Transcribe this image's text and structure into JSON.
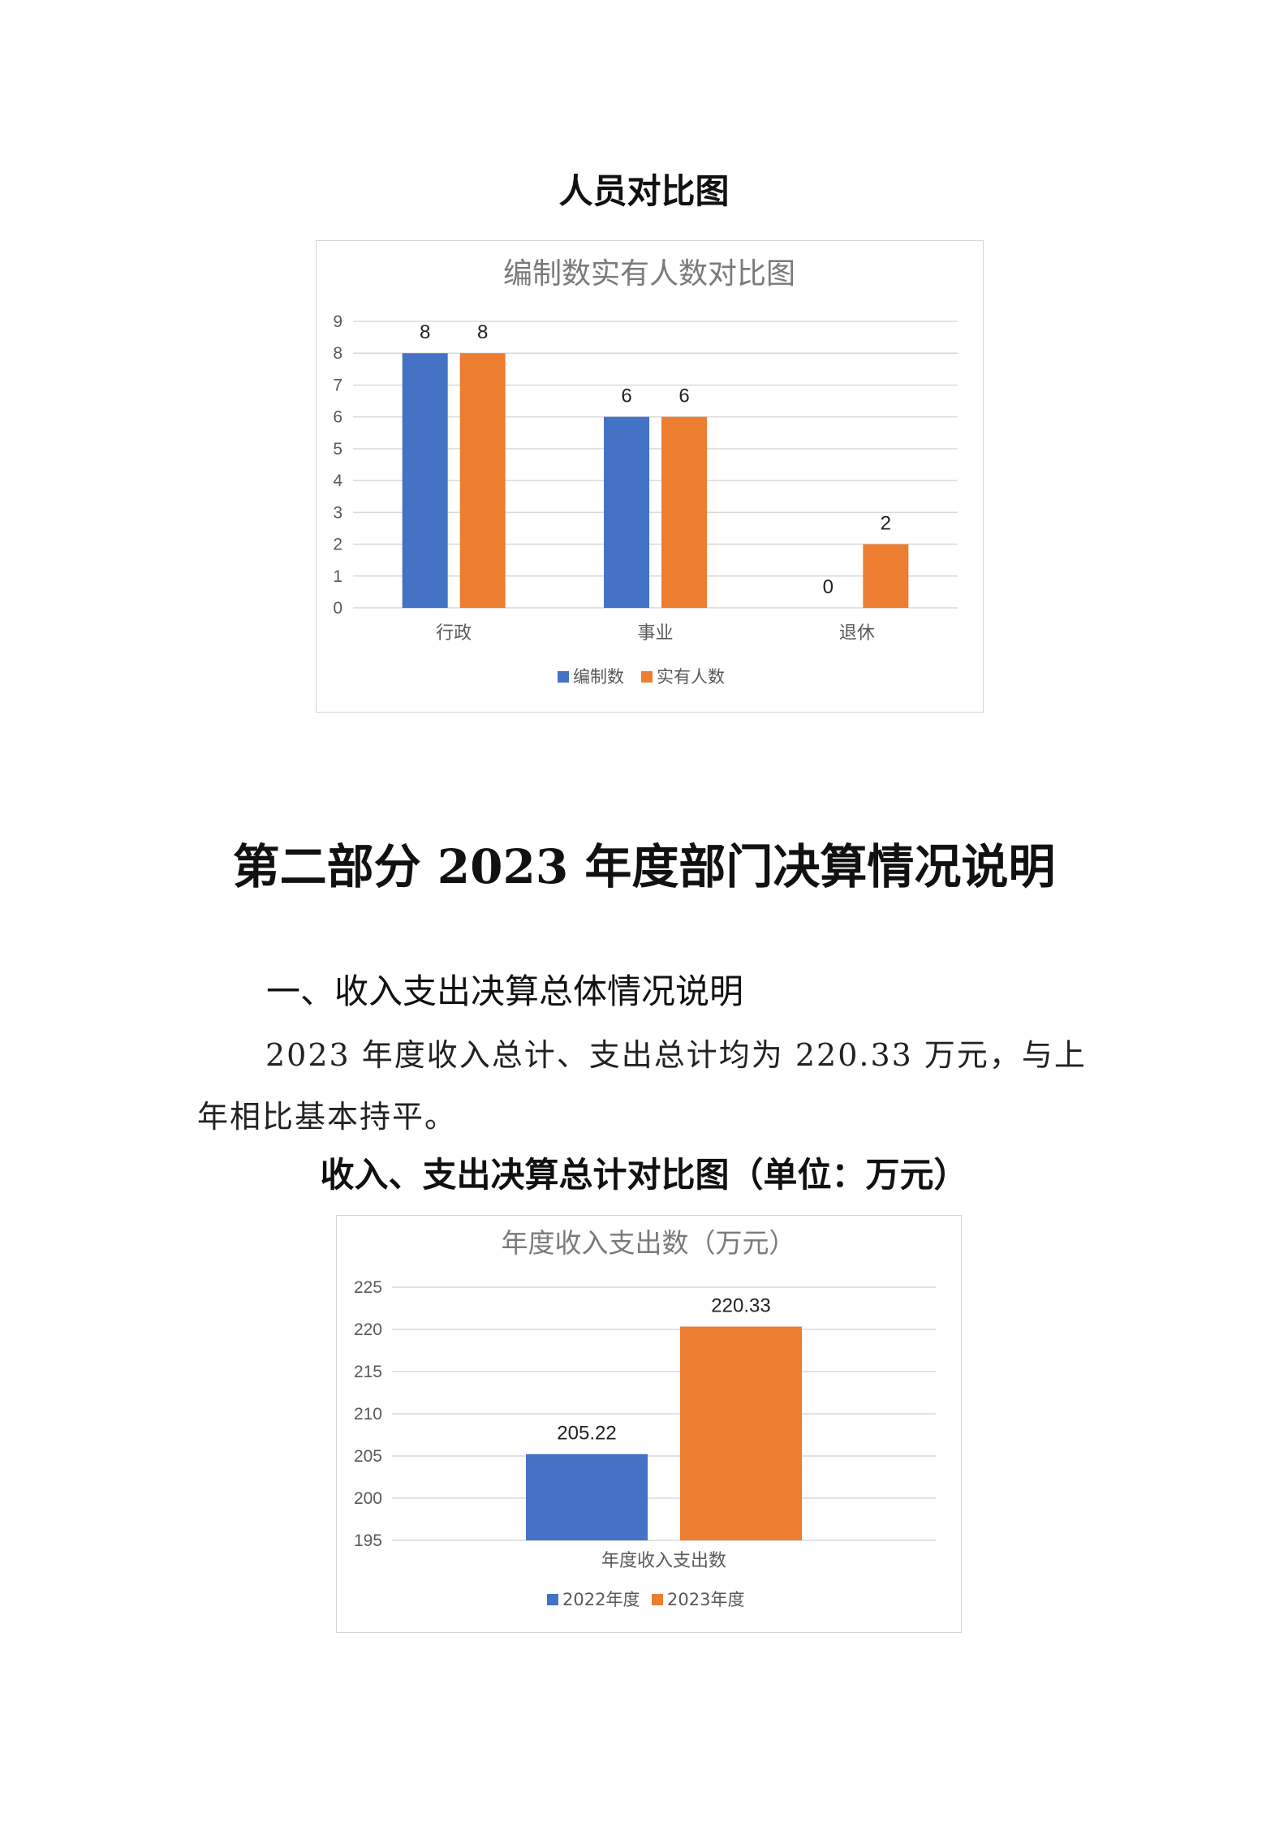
{
  "caption1": "人员对比图",
  "chart1": {
    "title": "编制数实有人数对比图",
    "colors": {
      "series1": "#4472c4",
      "series2": "#ed7d31"
    },
    "legend": [
      "编制数",
      "实有人数"
    ]
  },
  "part_title": "第二部分  2023 年度部门决算情况说明",
  "section_heading": "一、收入支出决算总体情况说明",
  "paragraph": "2023 年度收入总计、支出总计均为 220.33 万元，与上年相比基本持平。",
  "caption2": "收入、支出决算总计对比图（单位：万元）",
  "chart2": {
    "title": "年度收入支出数（万元）",
    "legend": [
      "2022年度",
      "2023年度"
    ]
  },
  "chart_data": [
    {
      "type": "bar",
      "title": "编制数实有人数对比图",
      "categories": [
        "行政",
        "事业",
        "退休"
      ],
      "series": [
        {
          "name": "编制数",
          "values": [
            8,
            6,
            0
          ],
          "color": "#4472c4"
        },
        {
          "name": "实有人数",
          "values": [
            8,
            6,
            2
          ],
          "color": "#ed7d31"
        }
      ],
      "ylim": [
        0,
        9
      ],
      "yticks": [
        0,
        1,
        2,
        3,
        4,
        5,
        6,
        7,
        8,
        9
      ],
      "grid": true,
      "legend_position": "bottom"
    },
    {
      "type": "bar",
      "title": "年度收入支出数（万元）",
      "categories": [
        "年度收入支出数"
      ],
      "series": [
        {
          "name": "2022年度",
          "values": [
            205.22
          ],
          "color": "#4472c4"
        },
        {
          "name": "2023年度",
          "values": [
            220.33
          ],
          "color": "#ed7d31"
        }
      ],
      "ylim": [
        195,
        225
      ],
      "yticks": [
        195,
        200,
        205,
        210,
        215,
        220,
        225
      ],
      "grid": true,
      "legend_position": "bottom"
    }
  ]
}
